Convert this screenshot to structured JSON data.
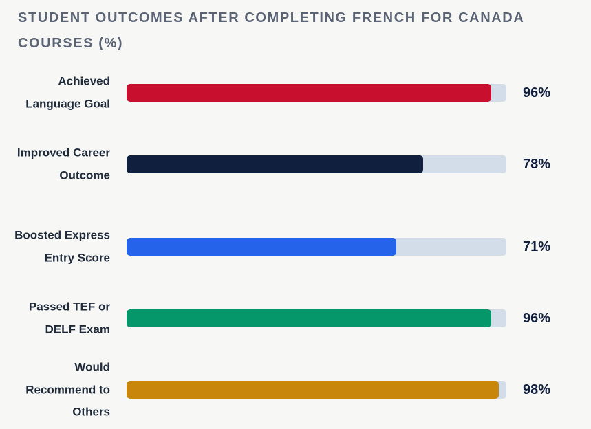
{
  "chart_data": {
    "type": "bar",
    "orientation": "horizontal",
    "title": "STUDENT OUTCOMES AFTER COMPLETING FRENCH FOR CANADA COURSES (%)",
    "xlim": [
      0,
      100
    ],
    "grid": false,
    "categories": [
      "Achieved Language Goal",
      "Improved Career Outcome",
      "Boosted Express Entry Score",
      "Passed TEF or DELF Exam",
      "Would Recommend to Others"
    ],
    "values": [
      96,
      78,
      71,
      96,
      98
    ],
    "value_labels": [
      "96%",
      "78%",
      "71%",
      "96%",
      "98%"
    ],
    "colors": [
      "#c8102e",
      "#0f1f3d",
      "#2563eb",
      "#059669",
      "#c8860a"
    ],
    "track_color": "#d3dce9"
  }
}
